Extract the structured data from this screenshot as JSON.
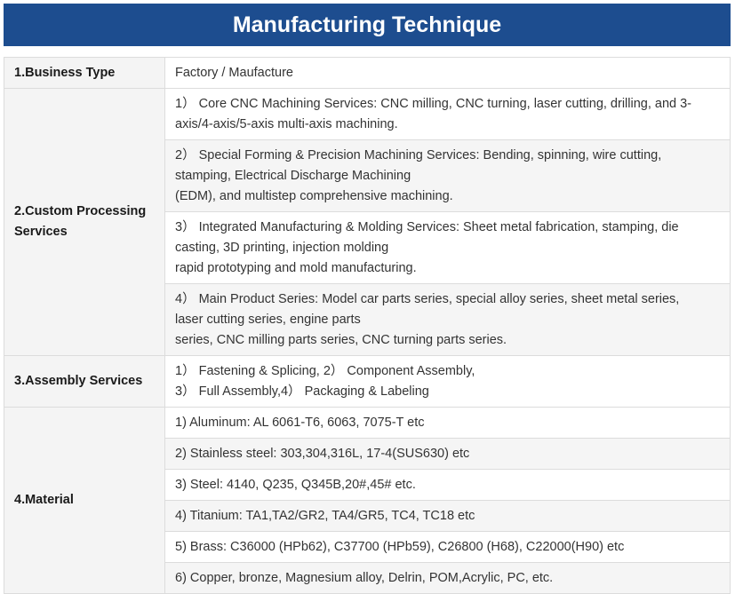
{
  "title": "Manufacturing Technique",
  "business": {
    "label": "1.Business Type",
    "value": "Factory / Maufacture"
  },
  "custom": {
    "label_lines": [
      "2.Custom Processing",
      "Services"
    ],
    "items": [
      [
        "1）  Core CNC Machining Services: CNC milling, CNC turning, laser cutting, drilling, and 3-",
        "axis/4-axis/5-axis multi-axis machining."
      ],
      [
        "2）  Special Forming & Precision Machining Services: Bending, spinning, wire cutting,",
        "stamping, Electrical Discharge Machining",
        "(EDM), and multistep comprehensive machining."
      ],
      [
        "3）  Integrated Manufacturing & Molding Services: Sheet metal fabrication, stamping, die",
        "casting, 3D printing, injection molding",
        "rapid prototyping and mold manufacturing."
      ],
      [
        "4）  Main Product Series: Model car parts series, special alloy series, sheet metal series,",
        "laser cutting series, engine parts",
        "series, CNC milling parts series, CNC turning parts series."
      ]
    ]
  },
  "assembly": {
    "label": "3.Assembly Services",
    "lines": [
      "1）  Fastening & Splicing, 2）  Component Assembly,",
      "3）  Full Assembly,4）  Packaging & Labeling"
    ]
  },
  "material": {
    "label": "4.Material",
    "items": [
      "1) Aluminum: AL 6061-T6, 6063, 7075-T etc",
      "2) Stainless steel: 303,304,316L, 17-4(SUS630) etc",
      "3) Steel: 4140, Q235, Q345B,20#,45# etc.",
      "4) Titanium: TA1,TA2/GR2, TA4/GR5, TC4, TC18 etc",
      "5) Brass: C36000 (HPb62), C37700 (HPb59), C26800 (H68), C22000(H90) etc",
      "6) Copper, bronze, Magnesium alloy, Delrin, POM,Acrylic, PC, etc."
    ]
  },
  "colors": {
    "banner": "#1d4d8f",
    "label_bg": "#f4f4f4",
    "alt_row": "#f5f5f5",
    "border": "#dcdcdc"
  }
}
